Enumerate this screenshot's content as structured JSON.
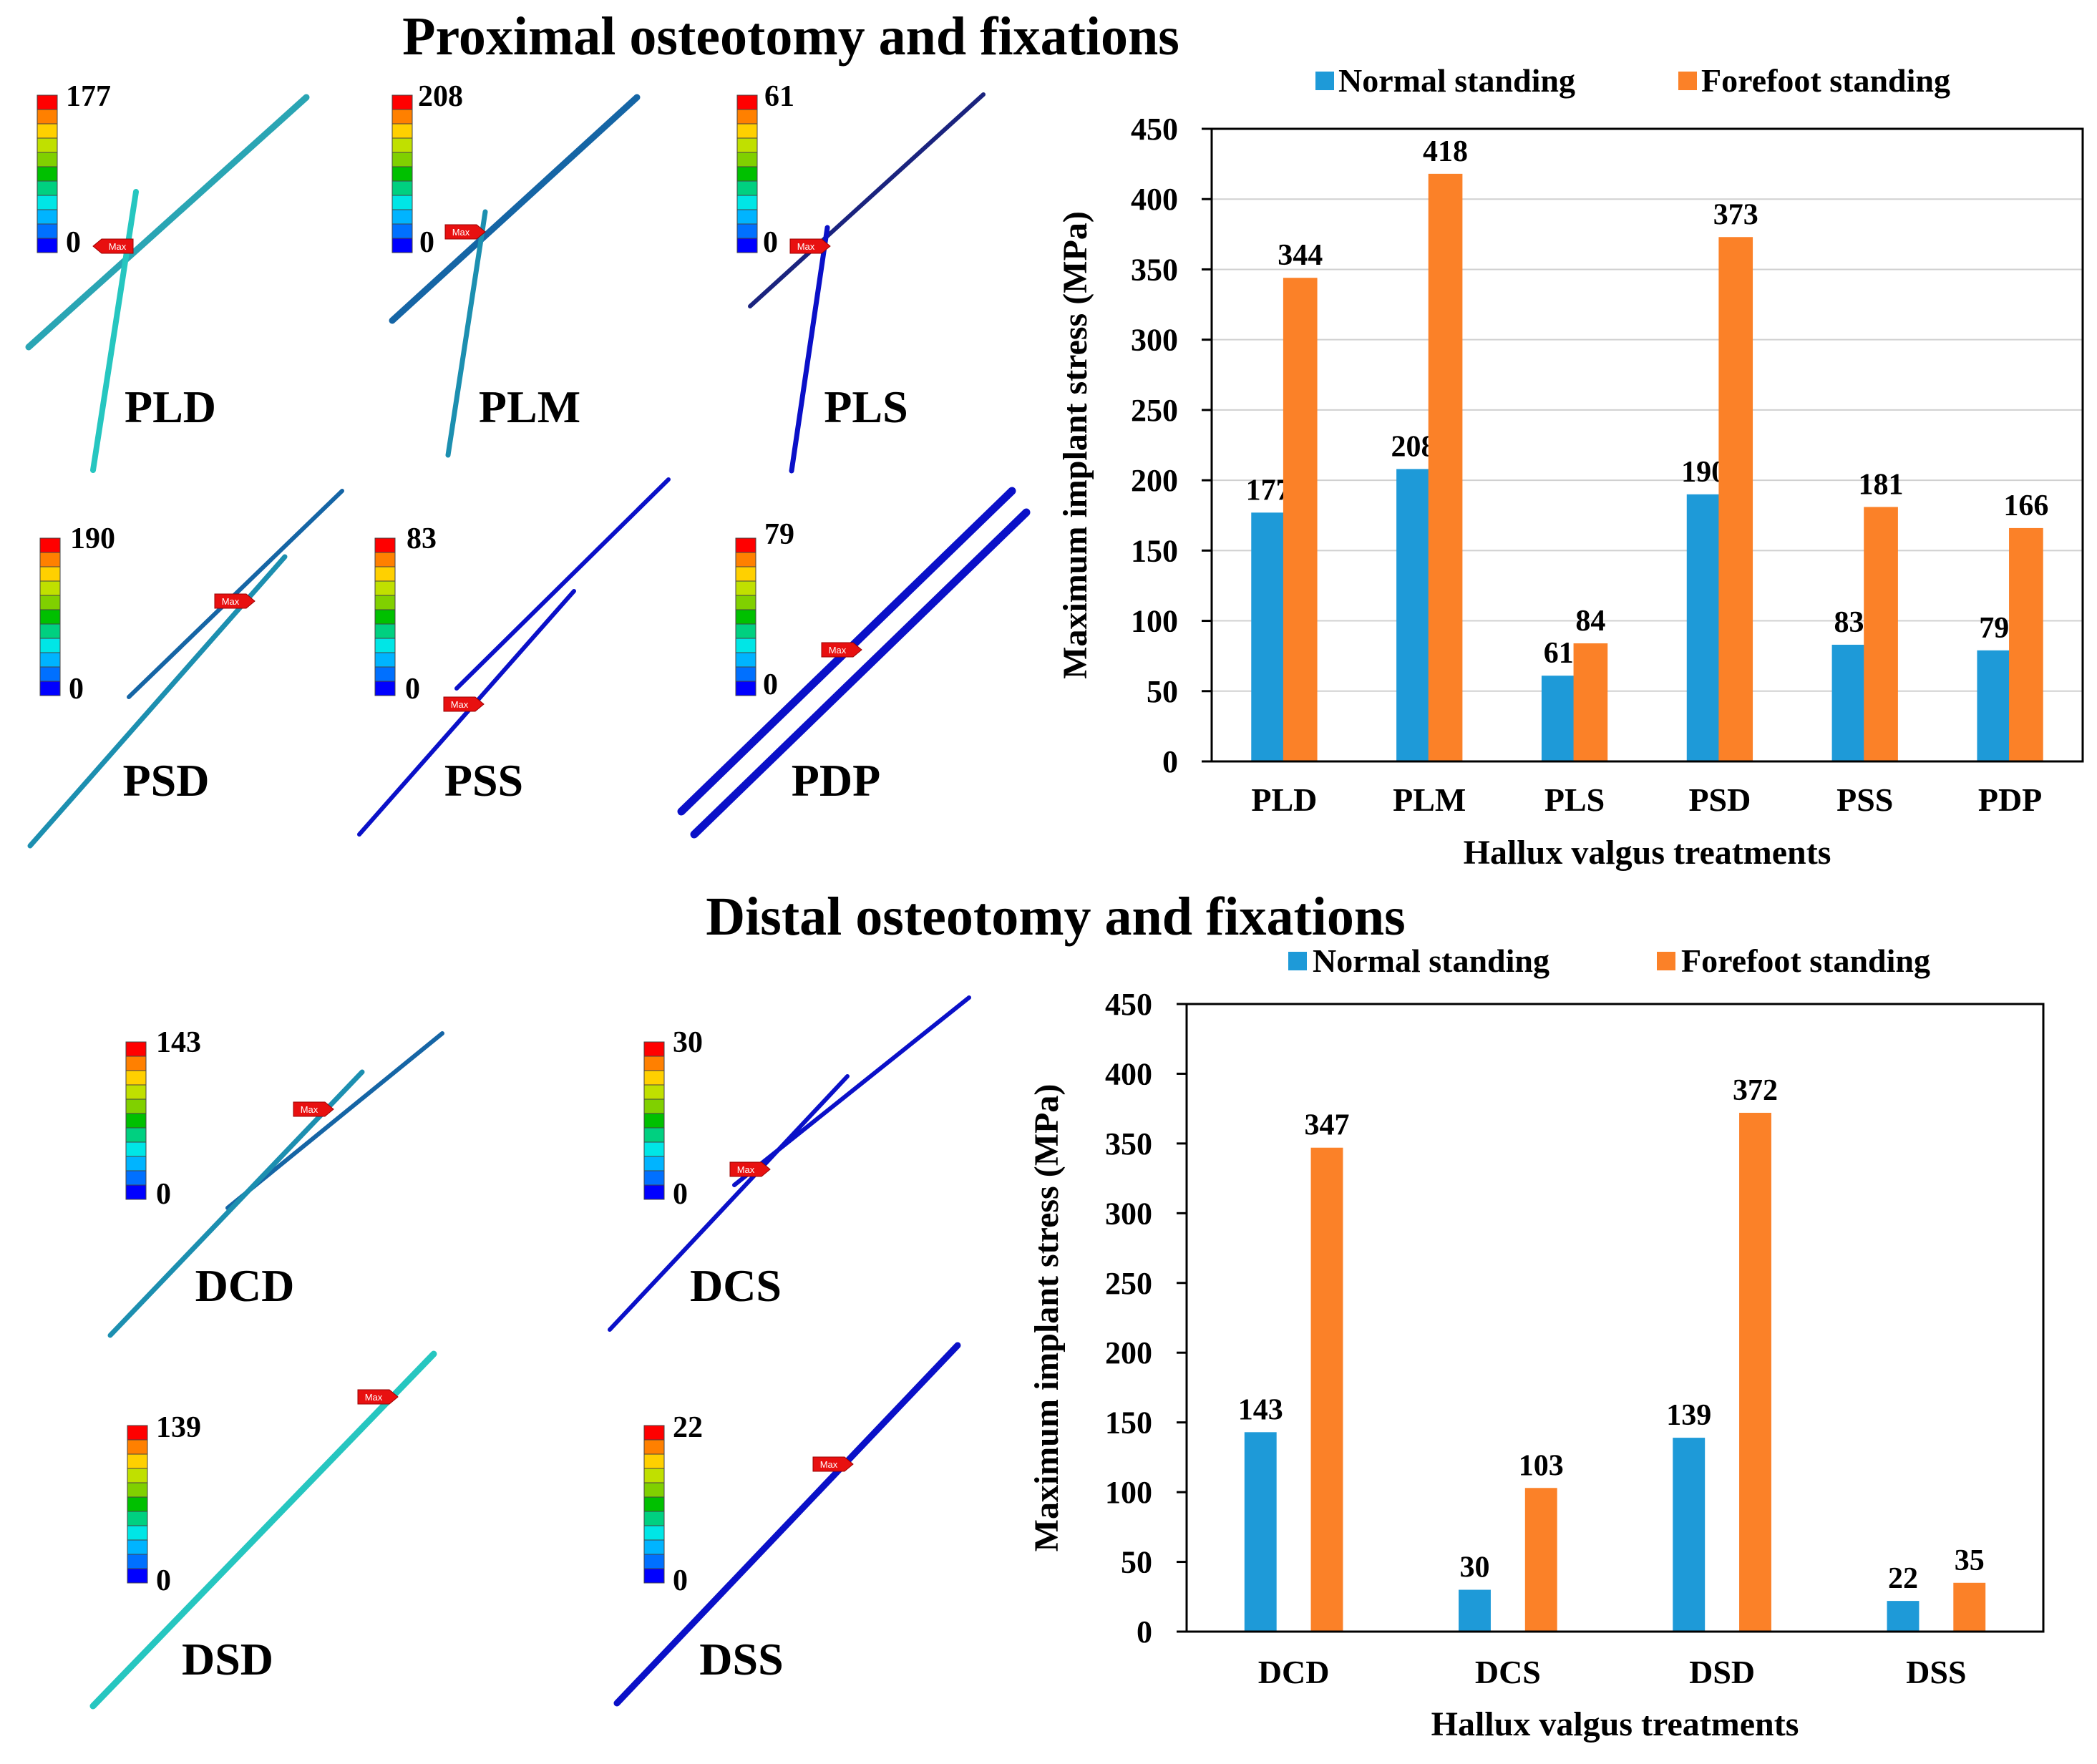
{
  "colors": {
    "normal": "#1e9ad8",
    "forefoot": "#fb8128",
    "scale": [
      "#0000ff",
      "#0070ff",
      "#00b4ff",
      "#00e6e6",
      "#00d080",
      "#00c000",
      "#80d000",
      "#c0e000",
      "#ffd000",
      "#ff8000",
      "#ff0000"
    ]
  },
  "sections": {
    "proximal": {
      "title": "Proximal osteotomy and fixations"
    },
    "distal": {
      "title": "Distal osteotomy and fixations"
    }
  },
  "max_marker": "Max",
  "proximal_models": [
    {
      "label": "PLD",
      "max": "177",
      "min": "0"
    },
    {
      "label": "PLM",
      "max": "208",
      "min": "0"
    },
    {
      "label": "PLS",
      "max": "61",
      "min": "0"
    },
    {
      "label": "PSD",
      "max": "190",
      "min": "0"
    },
    {
      "label": "PSS",
      "max": "83",
      "min": "0"
    },
    {
      "label": "PDP",
      "max": "79",
      "min": "0"
    }
  ],
  "distal_models": [
    {
      "label": "DCD",
      "max": "143",
      "min": "0"
    },
    {
      "label": "DCS",
      "max": "30",
      "min": "0"
    },
    {
      "label": "DSD",
      "max": "139",
      "min": "0"
    },
    {
      "label": "DSS",
      "max": "22",
      "min": "0"
    }
  ],
  "chart_data": [
    {
      "type": "bar",
      "title": "Proximal osteotomy and fixations",
      "categories": [
        "PLD",
        "PLM",
        "PLS",
        "PSD",
        "PSS",
        "PDP"
      ],
      "series": [
        {
          "name": "Normal standing",
          "values": [
            177,
            208,
            61,
            190,
            83,
            79
          ]
        },
        {
          "name": "Forefoot standing",
          "values": [
            344,
            418,
            84,
            373,
            181,
            166
          ]
        }
      ],
      "xlabel": "Hallux valgus treatments",
      "ylabel": "Maximum implant stress (MPa)",
      "ylim": [
        0,
        450
      ],
      "yticks": [
        0,
        50,
        100,
        150,
        200,
        250,
        300,
        350,
        400,
        450
      ],
      "grid": true,
      "legend": "top"
    },
    {
      "type": "bar",
      "title": "Distal osteotomy and fixations",
      "categories": [
        "DCD",
        "DCS",
        "DSD",
        "DSS"
      ],
      "series": [
        {
          "name": "Normal standing",
          "values": [
            143,
            30,
            139,
            22
          ]
        },
        {
          "name": "Forefoot standing",
          "values": [
            347,
            103,
            372,
            35
          ]
        }
      ],
      "xlabel": "Hallux valgus treatments",
      "ylabel": "Maximum implant stress (MPa)",
      "ylim": [
        0,
        450
      ],
      "yticks": [
        0,
        50,
        100,
        150,
        200,
        250,
        300,
        350,
        400,
        450
      ],
      "grid": false,
      "legend": "top"
    }
  ]
}
